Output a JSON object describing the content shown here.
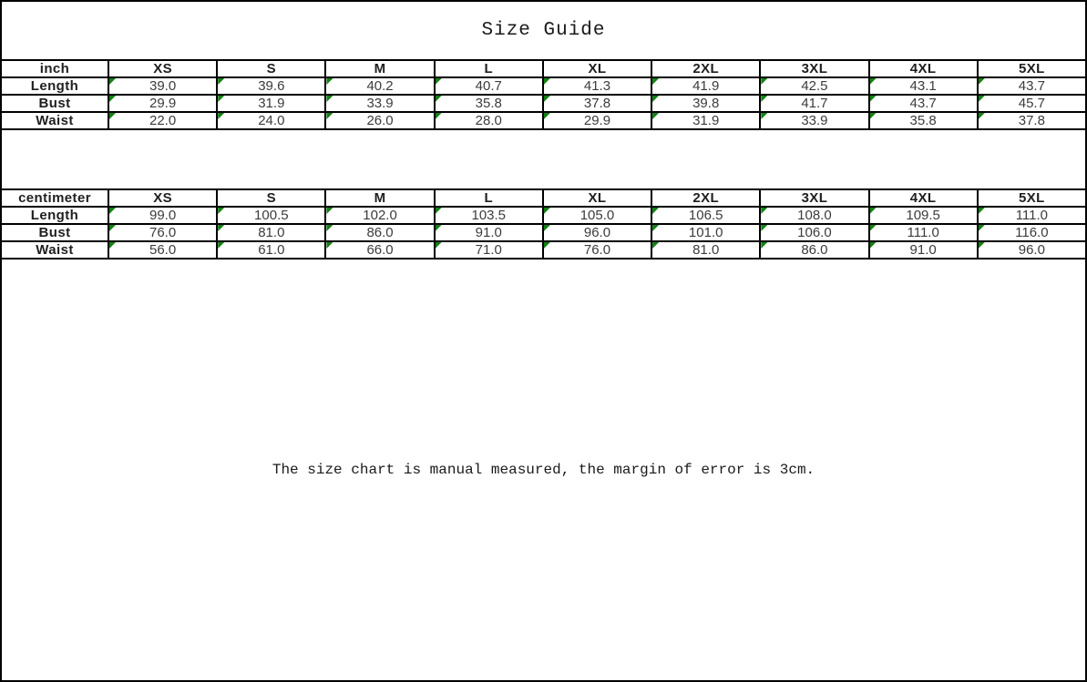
{
  "title": "Size Guide",
  "footer_note": "The size chart is manual measured, the margin of error is 3cm.",
  "colors": {
    "grid_border": "#000000",
    "corner_flag_green": "#148014",
    "background": "#ffffff",
    "header_text": "#1f1f1f",
    "value_text": "#3c3c3c"
  },
  "chart_data": {
    "type": "table",
    "title": "Size Guide",
    "sections": [
      {
        "unit_label": "inch",
        "columns": [
          "XS",
          "S",
          "M",
          "L",
          "XL",
          "2XL",
          "3XL",
          "4XL",
          "5XL"
        ],
        "rows": [
          {
            "label": "Length",
            "values": [
              "39.0",
              "39.6",
              "40.2",
              "40.7",
              "41.3",
              "41.9",
              "42.5",
              "43.1",
              "43.7"
            ]
          },
          {
            "label": "Bust",
            "values": [
              "29.9",
              "31.9",
              "33.9",
              "35.8",
              "37.8",
              "39.8",
              "41.7",
              "43.7",
              "45.7"
            ]
          },
          {
            "label": "Waist",
            "values": [
              "22.0",
              "24.0",
              "26.0",
              "28.0",
              "29.9",
              "31.9",
              "33.9",
              "35.8",
              "37.8"
            ]
          }
        ]
      },
      {
        "unit_label": "centimeter",
        "columns": [
          "XS",
          "S",
          "M",
          "L",
          "XL",
          "2XL",
          "3XL",
          "4XL",
          "5XL"
        ],
        "rows": [
          {
            "label": "Length",
            "values": [
              "99.0",
              "100.5",
              "102.0",
              "103.5",
              "105.0",
              "106.5",
              "108.0",
              "109.5",
              "111.0"
            ]
          },
          {
            "label": "Bust",
            "values": [
              "76.0",
              "81.0",
              "86.0",
              "91.0",
              "96.0",
              "101.0",
              "106.0",
              "111.0",
              "116.0"
            ]
          },
          {
            "label": "Waist",
            "values": [
              "56.0",
              "61.0",
              "66.0",
              "71.0",
              "76.0",
              "81.0",
              "86.0",
              "91.0",
              "96.0"
            ]
          }
        ]
      }
    ],
    "footnote": "The size chart is manual measured, the margin of error is 3cm."
  }
}
